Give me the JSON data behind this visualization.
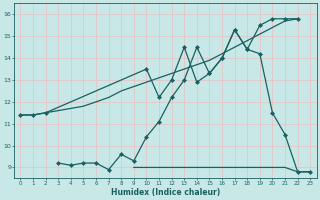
{
  "xlabel": "Humidex (Indice chaleur)",
  "ylabel": "",
  "bg_color": "#c8e8e8",
  "grid_color": "#e8c0c0",
  "line_color": "#1a6060",
  "xlim": [
    -0.5,
    23.5
  ],
  "ylim": [
    8.5,
    16.5
  ],
  "xticks": [
    0,
    1,
    2,
    3,
    4,
    5,
    6,
    7,
    8,
    9,
    10,
    11,
    12,
    13,
    14,
    15,
    16,
    17,
    18,
    19,
    20,
    21,
    22,
    23
  ],
  "yticks": [
    9,
    10,
    11,
    12,
    13,
    14,
    15,
    16
  ],
  "series": [
    {
      "x": [
        0,
        1,
        2,
        3,
        4,
        5,
        6,
        7,
        8,
        9,
        10,
        11,
        12,
        13,
        14,
        15,
        16,
        17,
        18,
        19,
        20,
        21,
        22
      ],
      "y": [
        11.4,
        11.4,
        11.5,
        11.6,
        11.7,
        11.8,
        12.0,
        12.2,
        12.5,
        12.7,
        12.9,
        13.1,
        13.3,
        13.5,
        13.7,
        13.9,
        14.2,
        14.5,
        14.8,
        15.1,
        15.4,
        15.7,
        15.8
      ],
      "marker": null,
      "linewidth": 0.9
    },
    {
      "x": [
        0,
        1,
        2,
        10,
        11,
        12,
        13,
        14,
        15,
        16,
        17,
        18,
        19,
        20,
        21,
        22
      ],
      "y": [
        11.4,
        11.4,
        11.5,
        13.5,
        12.2,
        13.0,
        14.5,
        12.9,
        13.3,
        14.0,
        15.3,
        14.4,
        15.5,
        15.8,
        15.8,
        15.8
      ],
      "marker": "D",
      "linewidth": 0.9
    },
    {
      "x": [
        3,
        4,
        5,
        6,
        7,
        8,
        9,
        10,
        11,
        12,
        13,
        14,
        15,
        16,
        17,
        18,
        19,
        20,
        21,
        22,
        23
      ],
      "y": [
        9.2,
        9.1,
        9.2,
        9.2,
        8.9,
        9.6,
        9.3,
        10.4,
        11.1,
        12.2,
        13.0,
        14.5,
        13.3,
        14.0,
        15.3,
        14.4,
        14.2,
        11.5,
        10.5,
        8.8,
        8.8
      ],
      "marker": "D",
      "linewidth": 0.9
    },
    {
      "x": [
        9,
        10,
        11,
        12,
        13,
        14,
        15,
        16,
        17,
        18,
        19,
        20,
        21,
        22,
        23
      ],
      "y": [
        9.0,
        9.0,
        9.0,
        9.0,
        9.0,
        9.0,
        9.0,
        9.0,
        9.0,
        9.0,
        9.0,
        9.0,
        9.0,
        8.8,
        8.8
      ],
      "marker": null,
      "linewidth": 0.9
    }
  ]
}
